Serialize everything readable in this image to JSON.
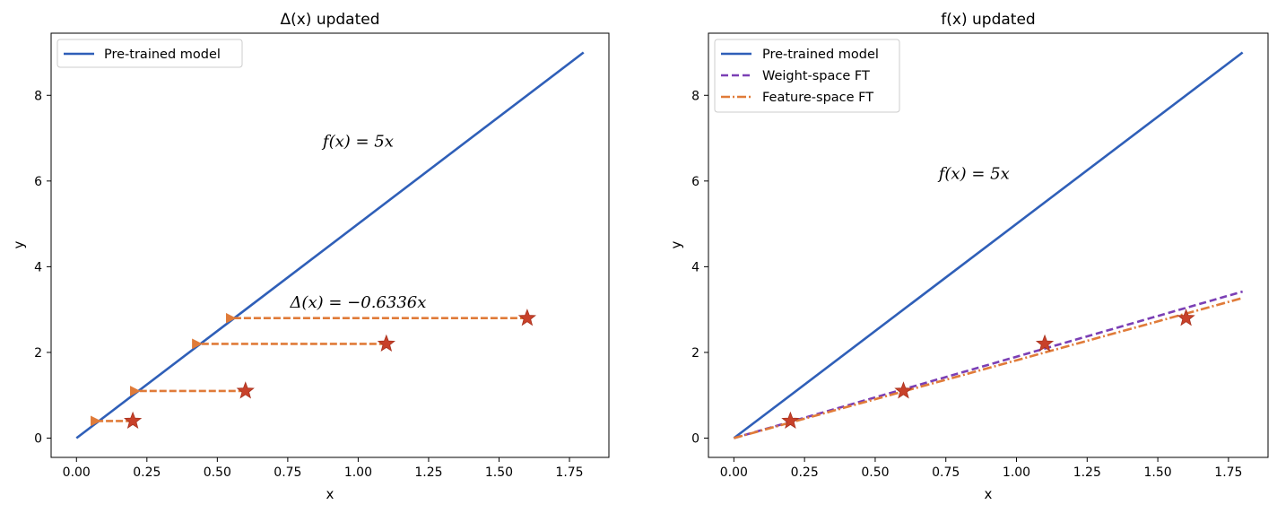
{
  "chart_data": [
    {
      "type": "line",
      "title": "Δ(x) updated",
      "xlabel": "x",
      "ylabel": "y",
      "xlim": [
        -0.09,
        1.89
      ],
      "ylim": [
        -0.45,
        9.45
      ],
      "xticks": [
        0.0,
        0.25,
        0.5,
        0.75,
        1.0,
        1.25,
        1.5,
        1.75
      ],
      "xtick_labels": [
        "0.00",
        "0.25",
        "0.50",
        "0.75",
        "1.00",
        "1.25",
        "1.50",
        "1.75"
      ],
      "yticks": [
        0,
        2,
        4,
        6,
        8
      ],
      "ytick_labels": [
        "0",
        "2",
        "4",
        "6",
        "8"
      ],
      "grid": false,
      "legend_position": "top-left",
      "series": [
        {
          "name": "Pre-trained model",
          "style": "solid",
          "color": "#2f5fb8",
          "x": [
            0,
            1.8
          ],
          "y": [
            0,
            9.0
          ]
        }
      ],
      "points": {
        "color": "#c8412a",
        "x": [
          0.2,
          0.6,
          1.1,
          1.6
        ],
        "y": [
          0.4,
          1.1,
          2.2,
          2.8
        ]
      },
      "arrows": {
        "color": "#e07b39",
        "items": [
          {
            "from": [
              0.2,
              0.4
            ],
            "to": [
              0.08,
              0.4
            ]
          },
          {
            "from": [
              0.6,
              1.1
            ],
            "to": [
              0.22,
              1.1
            ]
          },
          {
            "from": [
              1.1,
              2.2
            ],
            "to": [
              0.44,
              2.2
            ]
          },
          {
            "from": [
              1.6,
              2.8
            ],
            "to": [
              0.56,
              2.8
            ]
          }
        ]
      },
      "annotations": [
        {
          "text": "f(x) = 5x",
          "x": 1.0,
          "y": 6.8
        },
        {
          "text": "Δ(x) = −0.6336x",
          "x": 1.0,
          "y": 3.05
        }
      ]
    },
    {
      "type": "line",
      "title": "f(x) updated",
      "xlabel": "x",
      "ylabel": "y",
      "xlim": [
        -0.09,
        1.89
      ],
      "ylim": [
        -0.45,
        9.45
      ],
      "xticks": [
        0.0,
        0.25,
        0.5,
        0.75,
        1.0,
        1.25,
        1.5,
        1.75
      ],
      "xtick_labels": [
        "0.00",
        "0.25",
        "0.50",
        "0.75",
        "1.00",
        "1.25",
        "1.50",
        "1.75"
      ],
      "yticks": [
        0,
        2,
        4,
        6,
        8
      ],
      "ytick_labels": [
        "0",
        "2",
        "4",
        "6",
        "8"
      ],
      "grid": false,
      "legend_position": "top-left",
      "series": [
        {
          "name": "Pre-trained model",
          "style": "solid",
          "color": "#2f5fb8",
          "x": [
            0,
            1.8
          ],
          "y": [
            0,
            9.0
          ]
        },
        {
          "name": "Weight-space FT",
          "style": "dashed",
          "color": "#7b3fb5",
          "x": [
            0,
            1.8
          ],
          "y": [
            0,
            3.42
          ]
        },
        {
          "name": "Feature-space FT",
          "style": "dashdot",
          "color": "#e07b39",
          "x": [
            0,
            1.8
          ],
          "y": [
            0,
            3.27
          ]
        }
      ],
      "points": {
        "color": "#c8412a",
        "x": [
          0.2,
          0.6,
          1.1,
          1.6
        ],
        "y": [
          0.4,
          1.1,
          2.2,
          2.8
        ]
      },
      "annotations": [
        {
          "text": "f(x) = 5x",
          "x": 0.85,
          "y": 6.05
        }
      ]
    }
  ]
}
